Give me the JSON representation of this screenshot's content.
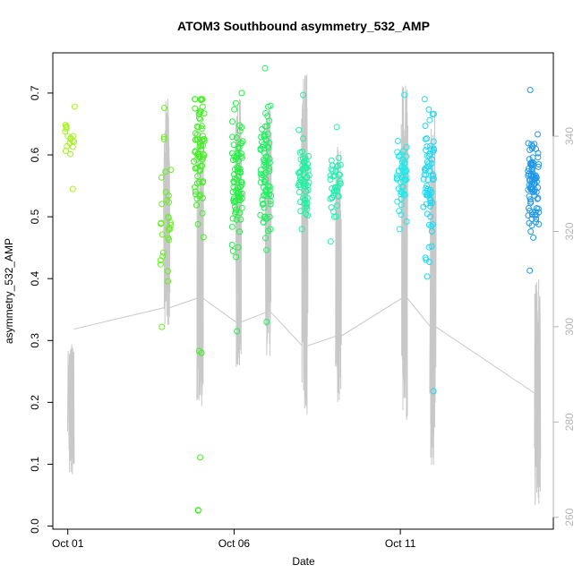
{
  "chart_data": {
    "type": "scatter",
    "title": "ATOM3 Southbound asymmetry_532_AMP",
    "xlabel": "Date",
    "ylabel": "asymmetry_532_AMP",
    "x_ticks": [
      "Oct 01",
      "Oct 06",
      "Oct 11"
    ],
    "x_tick_days": [
      1,
      6,
      11
    ],
    "xlim_days": [
      0.55,
      15.6
    ],
    "ylim": [
      -0.005,
      0.765
    ],
    "y_ticks": [
      0.0,
      0.1,
      0.2,
      0.3,
      0.4,
      0.5,
      0.6,
      0.7
    ],
    "y_tick_labels": [
      "0.0",
      "0.1",
      "0.2",
      "0.3",
      "0.4",
      "0.5",
      "0.6",
      "0.7"
    ],
    "y2_ticks": [
      260,
      280,
      300,
      320,
      340
    ],
    "y2_tick_labels": [
      "260",
      "280",
      "300",
      "320",
      "340"
    ],
    "y2lim": [
      257.5,
      357.5
    ],
    "y2_color": "#b4b4b4",
    "grid": false,
    "legend": "none",
    "clusters": [
      {
        "day": 1.05,
        "color": "#a6f020",
        "count": 18,
        "ymin": 0.545,
        "ymax": 0.678,
        "center": 0.62
      },
      {
        "day": 3.95,
        "color": "#66f020",
        "count": 30,
        "ymin": 0.322,
        "ymax": 0.676,
        "center": 0.5
      },
      {
        "day": 4.95,
        "color": "#40f020",
        "count": 70,
        "ymin": 0.28,
        "ymax": 0.69,
        "center": 0.6
      },
      {
        "day": 6.1,
        "color": "#20f040",
        "count": 80,
        "ymin": 0.315,
        "ymax": 0.7,
        "center": 0.56
      },
      {
        "day": 6.95,
        "color": "#20f060",
        "count": 80,
        "ymin": 0.33,
        "ymax": 0.74,
        "center": 0.57
      },
      {
        "day": 8.1,
        "color": "#20f0a0",
        "count": 60,
        "ymin": 0.48,
        "ymax": 0.697,
        "center": 0.56
      },
      {
        "day": 9.05,
        "color": "#20f0b0",
        "count": 40,
        "ymin": 0.46,
        "ymax": 0.645,
        "center": 0.55
      },
      {
        "day": 11.05,
        "color": "#20e8e8",
        "count": 50,
        "ymin": 0.48,
        "ymax": 0.697,
        "center": 0.57
      },
      {
        "day": 11.85,
        "color": "#20d8f0",
        "count": 70,
        "ymin": 0.218,
        "ymax": 0.69,
        "center": 0.55
      },
      {
        "day": 15.0,
        "color": "#2098e8",
        "count": 90,
        "ymin": 0.413,
        "ymax": 0.705,
        "center": 0.55
      }
    ],
    "outliers": [
      {
        "day": 4.92,
        "y": 0.026,
        "color": "#40f020"
      },
      {
        "day": 4.92,
        "y": 0.025,
        "color": "#40f020"
      },
      {
        "day": 4.98,
        "y": 0.111,
        "color": "#40f020"
      },
      {
        "day": 4.95,
        "y": 0.283,
        "color": "#40f020"
      }
    ],
    "altitude_series": {
      "name": "",
      "color": "#c8c8c8",
      "segments": [
        {
          "day": 1.02,
          "min": 269,
          "max": 297,
          "start": 299.5
        },
        {
          "day": 3.9,
          "min": 300,
          "max": 348,
          "start": 304
        },
        {
          "day": 4.9,
          "min": 283,
          "max": 341,
          "start": 306
        },
        {
          "day": 6.05,
          "min": 291,
          "max": 348,
          "start": 301
        },
        {
          "day": 6.95,
          "min": 293,
          "max": 346,
          "start": 303
        },
        {
          "day": 8.05,
          "min": 281,
          "max": 353,
          "start": 296
        },
        {
          "day": 9.05,
          "min": 284,
          "max": 338,
          "start": 298
        },
        {
          "day": 11.05,
          "min": 280,
          "max": 351,
          "start": 306
        },
        {
          "day": 11.9,
          "min": 270,
          "max": 345,
          "start": 300
        },
        {
          "day": 15.05,
          "min": 262,
          "max": 310,
          "start": 286
        }
      ]
    }
  }
}
